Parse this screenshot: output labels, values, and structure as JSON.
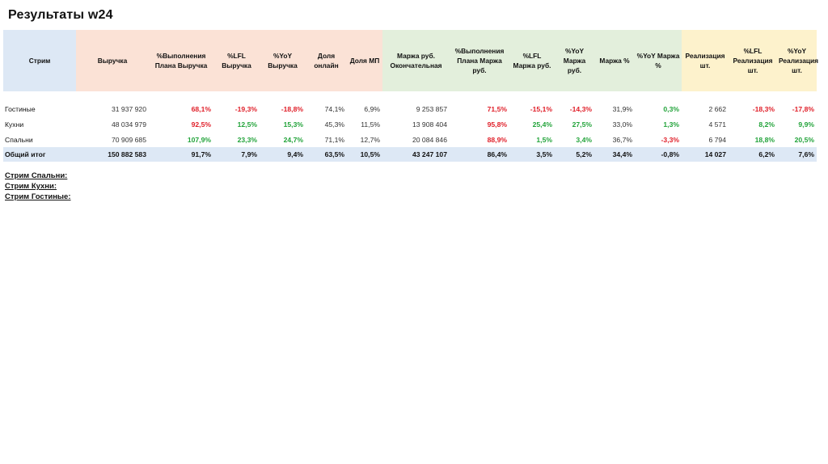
{
  "title": "Результаты w24",
  "colors": {
    "red": "#e0202a",
    "green": "#22a33a",
    "blue_band": "#dde8f5",
    "peach_band": "#fbe2d6",
    "green_band": "#e3efdc",
    "yellow_band": "#fdf2cc"
  },
  "headers": [
    "Стрим",
    "Выручка",
    "%Выполнения Плана Выручка",
    "%LFL Выручка",
    "%YoY Выручка",
    "Доля онлайн",
    "Доля МП",
    "Маржа руб. Окончательная",
    "%Выполнения Плана Маржа руб.",
    "%LFL Маржа руб.",
    "%YoY Маржа руб.",
    "Маржа %",
    "%YoY Маржа %",
    "Реализация шт.",
    "%LFL Реализация шт.",
    "%YoY Реализация шт."
  ],
  "rows": [
    {
      "cells": [
        "Гостиные",
        "31 937 920",
        "68,1%",
        "-19,3%",
        "-18,8%",
        "74,1%",
        "6,9%",
        "9 253 857",
        "71,5%",
        "-15,1%",
        "-14,3%",
        "31,9%",
        "0,3%",
        "2 662",
        "-18,3%",
        "-17,8%"
      ],
      "colors": [
        "",
        "",
        "red",
        "red",
        "red",
        "",
        "",
        "",
        "red",
        "red",
        "red",
        "",
        "green",
        "",
        "red",
        "red"
      ]
    },
    {
      "cells": [
        "Кухни",
        "48 034 979",
        "92,5%",
        "12,5%",
        "15,3%",
        "45,3%",
        "11,5%",
        "13 908 404",
        "95,8%",
        "25,4%",
        "27,5%",
        "33,0%",
        "1,3%",
        "4 571",
        "8,2%",
        "9,9%"
      ],
      "colors": [
        "",
        "",
        "red",
        "green",
        "green",
        "",
        "",
        "",
        "red",
        "green",
        "green",
        "",
        "green",
        "",
        "green",
        "green"
      ]
    },
    {
      "cells": [
        "Спальни",
        "70 909 685",
        "107,9%",
        "23,3%",
        "24,7%",
        "71,1%",
        "12,7%",
        "20 084 846",
        "88,9%",
        "1,5%",
        "3,4%",
        "36,7%",
        "-3,3%",
        "6 794",
        "18,8%",
        "20,5%"
      ],
      "colors": [
        "",
        "",
        "green",
        "green",
        "green",
        "",
        "",
        "",
        "red",
        "green",
        "green",
        "",
        "red",
        "",
        "green",
        "green"
      ]
    }
  ],
  "total": [
    "Общий итог",
    "150 882 583",
    "91,7%",
    "7,9%",
    "9,4%",
    "63,5%",
    "10,5%",
    "43 247 107",
    "86,4%",
    "3,5%",
    "5,2%",
    "34,4%",
    "-0,8%",
    "14 027",
    "6,2%",
    "7,6%"
  ],
  "notes": [
    "Стрим Спальни:",
    "Стрим Кухни:",
    "Стрим Гостиные:"
  ]
}
